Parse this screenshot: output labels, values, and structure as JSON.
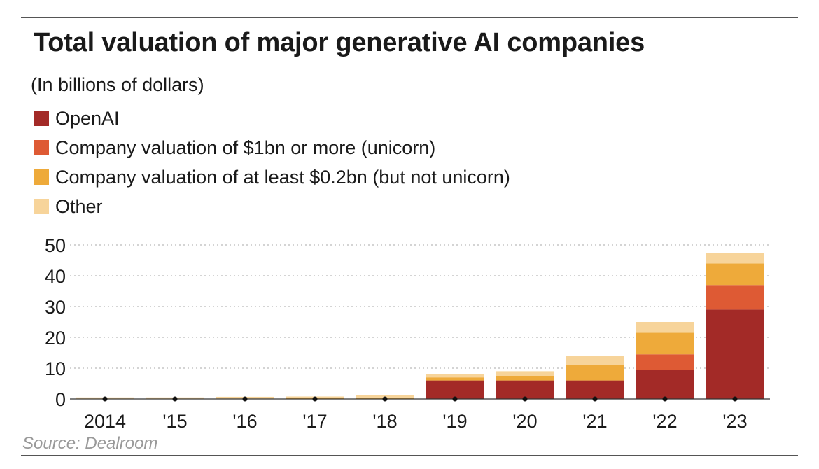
{
  "title": "Total valuation of major generative AI companies",
  "subtitle": "(In billions of dollars)",
  "source": "Source: Dealroom",
  "colors": {
    "openai": "#a32a27",
    "unicorn": "#de5a34",
    "near_unicorn": "#eeaa3a",
    "other": "#f7d49a",
    "grid": "#bbbbbb",
    "tick_dot": "#111111"
  },
  "chart_data": {
    "type": "bar",
    "stacked": true,
    "categories": [
      "2014",
      "'15",
      "'16",
      "'17",
      "'18",
      "'19",
      "'20",
      "'21",
      "'22",
      "'23"
    ],
    "series": [
      {
        "name": "OpenAI",
        "color_key": "openai",
        "values": [
          0,
          0,
          0,
          0,
          0,
          6,
          6,
          6,
          9.5,
          29
        ]
      },
      {
        "name": "Company valuation of $1bn or more (unicorn)",
        "color_key": "unicorn",
        "values": [
          0,
          0,
          0,
          0,
          0,
          0,
          0,
          0,
          5,
          8
        ]
      },
      {
        "name": "Company valuation of at least $0.2bn (but not unicorn)",
        "color_key": "near_unicorn",
        "values": [
          0,
          0,
          0,
          0.3,
          0.5,
          1,
          1.5,
          5,
          7,
          7
        ]
      },
      {
        "name": "Other",
        "color_key": "other",
        "values": [
          0.5,
          0.5,
          0.7,
          0.5,
          0.7,
          1,
          1.5,
          3,
          3.5,
          3.5
        ]
      }
    ],
    "yticks": [
      0,
      10,
      20,
      30,
      40,
      50
    ],
    "ylim": [
      0,
      50
    ],
    "grid": "horizontal dotted",
    "legend_position": "top-left"
  }
}
